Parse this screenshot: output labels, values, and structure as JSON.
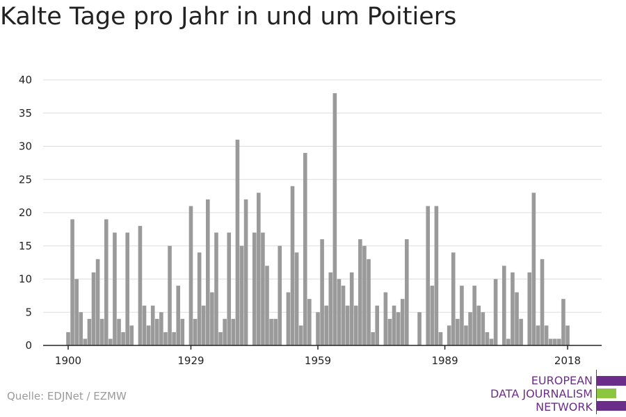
{
  "title": "Kalte Tage pro Jahr in und um Poitiers",
  "source": "Quelle: EDJNet / EZMW",
  "logo": {
    "line1": "EUROPEAN",
    "line2": "DATA JOURNALISM",
    "line3": "NETWORK",
    "colors": {
      "purple": "#6b2d8a",
      "green": "#8cc63f"
    }
  },
  "colors": {
    "bar": "#9a9a9a",
    "grid": "#dddddd",
    "axis": "#222222",
    "text": "#222222"
  },
  "chart_data": {
    "type": "bar",
    "x": [
      1900,
      1901,
      1902,
      1903,
      1904,
      1905,
      1906,
      1907,
      1908,
      1909,
      1910,
      1911,
      1912,
      1913,
      1914,
      1915,
      1916,
      1917,
      1918,
      1919,
      1920,
      1921,
      1922,
      1923,
      1924,
      1925,
      1926,
      1927,
      1928,
      1929,
      1930,
      1931,
      1932,
      1933,
      1934,
      1935,
      1936,
      1937,
      1938,
      1939,
      1940,
      1941,
      1942,
      1943,
      1944,
      1945,
      1946,
      1947,
      1948,
      1949,
      1950,
      1951,
      1952,
      1953,
      1954,
      1955,
      1956,
      1957,
      1958,
      1959,
      1960,
      1961,
      1962,
      1963,
      1964,
      1965,
      1966,
      1967,
      1968,
      1969,
      1970,
      1971,
      1972,
      1973,
      1974,
      1975,
      1976,
      1977,
      1978,
      1979,
      1980,
      1981,
      1982,
      1983,
      1984,
      1985,
      1986,
      1987,
      1988,
      1989,
      1990,
      1991,
      1992,
      1993,
      1994,
      1995,
      1996,
      1997,
      1998,
      1999,
      2000,
      2001,
      2002,
      2003,
      2004,
      2005,
      2006,
      2007,
      2008,
      2009,
      2010,
      2011,
      2012,
      2013,
      2014,
      2015,
      2016,
      2017,
      2018
    ],
    "values": [
      2,
      19,
      10,
      5,
      1,
      4,
      11,
      13,
      4,
      19,
      1,
      17,
      4,
      2,
      17,
      3,
      0,
      18,
      6,
      3,
      6,
      4,
      5,
      2,
      15,
      2,
      9,
      4,
      0,
      21,
      4,
      14,
      6,
      22,
      8,
      17,
      2,
      4,
      17,
      4,
      31,
      15,
      22,
      0,
      17,
      23,
      17,
      12,
      4,
      4,
      15,
      0,
      8,
      24,
      14,
      3,
      29,
      7,
      0,
      5,
      16,
      6,
      11,
      38,
      10,
      9,
      6,
      11,
      6,
      16,
      15,
      13,
      2,
      6,
      0,
      8,
      4,
      6,
      5,
      7,
      16,
      0,
      0,
      5,
      0,
      21,
      9,
      21,
      2,
      0,
      3,
      14,
      4,
      9,
      3,
      5,
      9,
      6,
      5,
      2,
      1,
      10,
      0,
      12,
      1,
      11,
      8,
      4,
      0,
      11,
      23,
      3,
      13,
      3,
      1,
      1,
      1,
      7,
      3
    ],
    "xticks": [
      1900,
      1929,
      1959,
      1989,
      2018
    ],
    "yticks": [
      0,
      5,
      10,
      15,
      20,
      25,
      30,
      35,
      40
    ],
    "ylim": [
      0,
      40
    ],
    "xlim": [
      1900,
      2018
    ],
    "title": "Kalte Tage pro Jahr in und um Poitiers",
    "xlabel": "",
    "ylabel": "",
    "grid": true
  }
}
